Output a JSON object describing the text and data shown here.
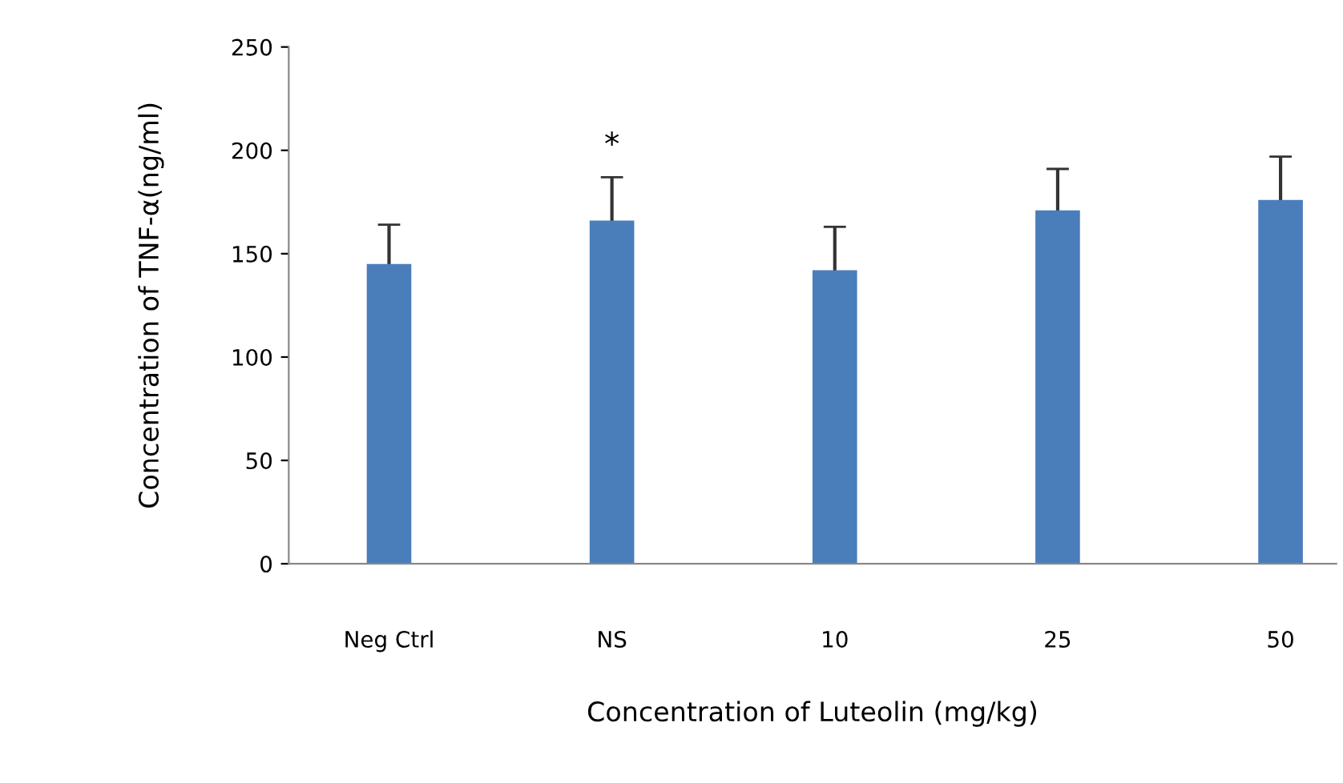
{
  "chart_data": {
    "type": "bar",
    "xlabel": "Concentration of Luteolin (mg/kg)",
    "ylabel": "Concentration of TNF-α(ng/ml)",
    "categories": [
      "Neg Ctrl",
      "NS",
      "10",
      "25",
      "50"
    ],
    "values": [
      145,
      166,
      142,
      171,
      176
    ],
    "errors": [
      19,
      21,
      21,
      20,
      21
    ],
    "color": "#4a7ebb",
    "ylim": [
      0,
      250
    ],
    "yticks": [
      0,
      50,
      100,
      150,
      200,
      250
    ],
    "annotations": [
      "*"
    ],
    "grid": false
  }
}
